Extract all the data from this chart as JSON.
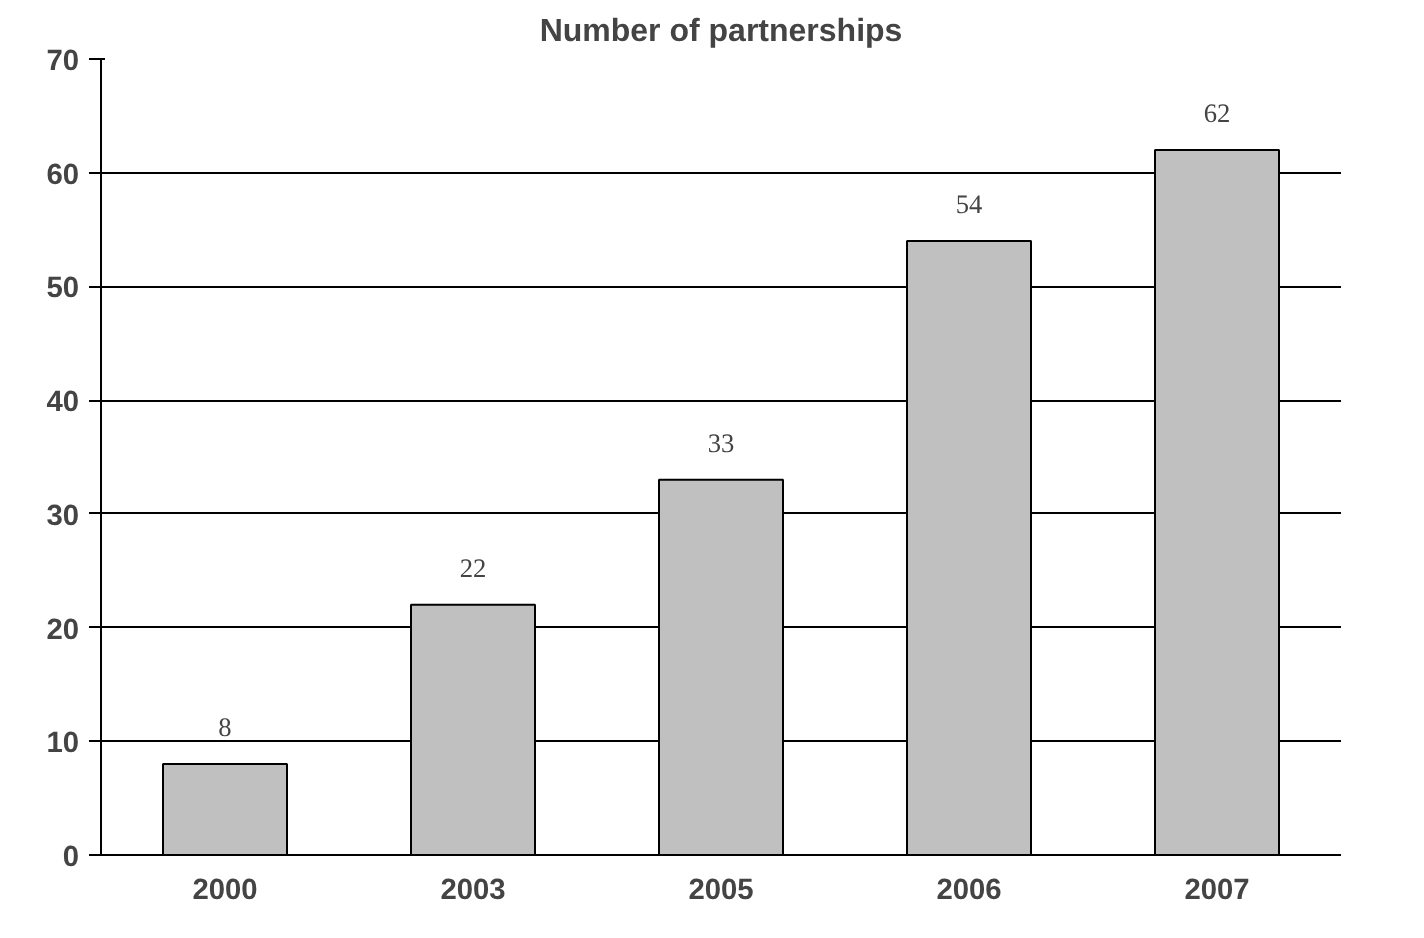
{
  "chart_data": {
    "type": "bar",
    "title": "Number of partnerships",
    "categories": [
      "2000",
      "2003",
      "2005",
      "2006",
      "2007"
    ],
    "values": [
      8,
      22,
      33,
      54,
      62
    ],
    "color": "#c0c0c0",
    "ylim": [
      0,
      70
    ],
    "yticks": [
      0,
      10,
      20,
      30,
      40,
      50,
      60,
      70
    ],
    "grid": "y",
    "data_labels": true
  }
}
